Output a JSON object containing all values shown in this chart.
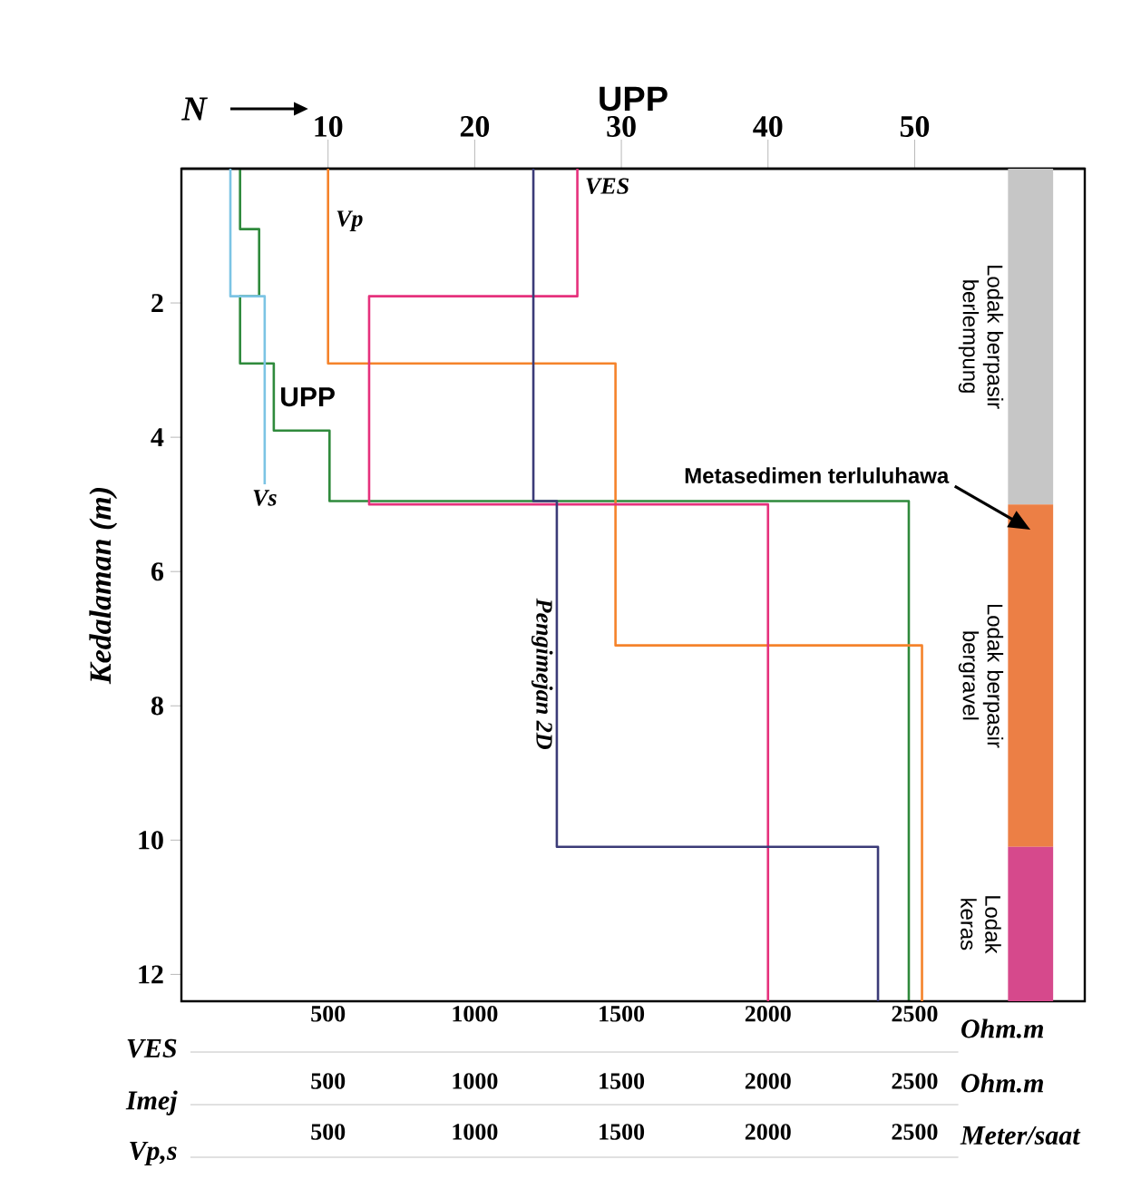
{
  "chart_data": {
    "type": "line",
    "xlabel": "VES",
    "ylabel": "Kedalaman (m)",
    "x2label": "UPP",
    "xlim": [
      0,
      3080
    ],
    "xticks": [
      500,
      1000,
      1500,
      2000,
      2500
    ],
    "x2lim": [
      0,
      61.6
    ],
    "x2ticks": [
      10,
      20,
      30,
      40,
      50
    ],
    "ylim": [
      12.4,
      0
    ],
    "yticks": [
      2,
      4,
      6,
      8,
      10,
      12
    ],
    "marker": "none",
    "line_style": "solid",
    "series": [
      {
        "name": "Vs",
        "color": "#7cc4e4",
        "x": [
          167,
          167,
          284,
          284
        ],
        "values": [
          0,
          1.9,
          1.9,
          4.7
        ]
      },
      {
        "name": "UPP",
        "color": "#2f8a3c",
        "axis": "x2",
        "x": [
          4.0,
          4.0,
          5.3,
          5.3,
          4.0,
          4.0,
          6.3,
          6.3,
          10.1,
          10.1,
          49.6,
          49.6
        ],
        "values": [
          0,
          0.9,
          0.9,
          1.9,
          1.9,
          2.9,
          2.9,
          3.9,
          3.9,
          4.95,
          4.95,
          12.4
        ]
      },
      {
        "name": "Vp",
        "color": "#f5832b",
        "x": [
          500,
          500,
          1480,
          1480,
          2525,
          2525
        ],
        "values": [
          0,
          2.9,
          2.9,
          7.1,
          7.1,
          12.4
        ]
      },
      {
        "name": "VES",
        "color": "#e6317c",
        "x": [
          1350,
          1350,
          640,
          640,
          2000,
          2000
        ],
        "values": [
          0,
          1.9,
          1.9,
          5.0,
          5.0,
          12.4
        ]
      },
      {
        "name": "Pengimejan 2D",
        "color": "#3b3b78",
        "x": [
          1200,
          1200,
          1280,
          1280,
          2375,
          2375
        ],
        "values": [
          0,
          4.95,
          4.95,
          10.1,
          10.1,
          12.4
        ]
      }
    ],
    "bands": [
      {
        "axis": "y",
        "from": 0,
        "to": 5.0,
        "label": "Lodak berpasir berlempung",
        "color": "#c6c6c6"
      },
      {
        "axis": "y",
        "from": 5.0,
        "to": 10.1,
        "label": "Lodak berpasir bergravel",
        "color": "#ec7f45"
      },
      {
        "axis": "y",
        "from": 10.1,
        "to": 12.4,
        "label": "Lodak keras",
        "color": "#d6498c"
      }
    ],
    "annotations": [
      "Ohm.m",
      "Imej",
      "Ohm.m",
      "Vp,s",
      "Meter/saat",
      "N",
      "Metasedimen terluluhawa",
      "500",
      "1000",
      "1500",
      "2000",
      "2500",
      "500",
      "1000",
      "1500",
      "2000",
      "2500"
    ]
  }
}
